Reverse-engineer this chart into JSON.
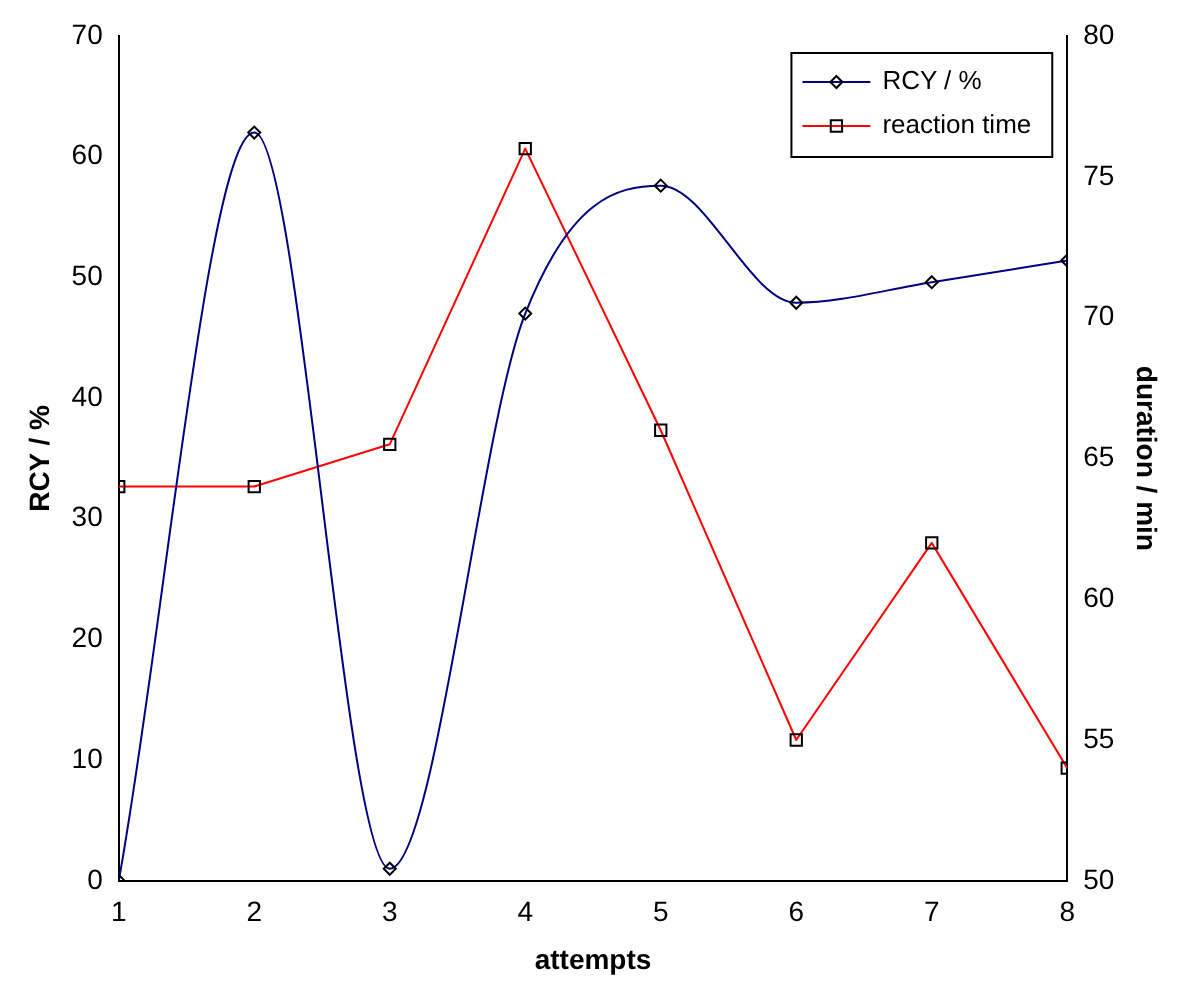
{
  "chart_data": {
    "type": "line",
    "xlabel": "attempts",
    "ylabel": "RCY / %",
    "y2label": "duration / min",
    "x": [
      1,
      2,
      3,
      4,
      5,
      6,
      7,
      8
    ],
    "series": [
      {
        "name": "RCY / %",
        "color": "#000080",
        "values": [
          0,
          62,
          1,
          47,
          57.6,
          47.9,
          49.6,
          51.4
        ],
        "marker": "diamond"
      },
      {
        "name": "reaction time",
        "color": "#ff0000",
        "values": [
          64,
          64,
          65.5,
          76,
          66,
          55,
          62,
          54
        ],
        "marker": "square",
        "axis": "y2"
      }
    ],
    "xlim": [
      1,
      8
    ],
    "xticks": [
      1,
      2,
      3,
      4,
      5,
      6,
      7,
      8
    ],
    "ylim": [
      0,
      70
    ],
    "yticks": [
      0,
      10,
      20,
      30,
      40,
      50,
      60,
      70
    ],
    "y2lim": [
      50,
      80
    ],
    "y2ticks": [
      50,
      55,
      60,
      65,
      70,
      75,
      80
    ],
    "grid": false,
    "legend": "top right"
  }
}
